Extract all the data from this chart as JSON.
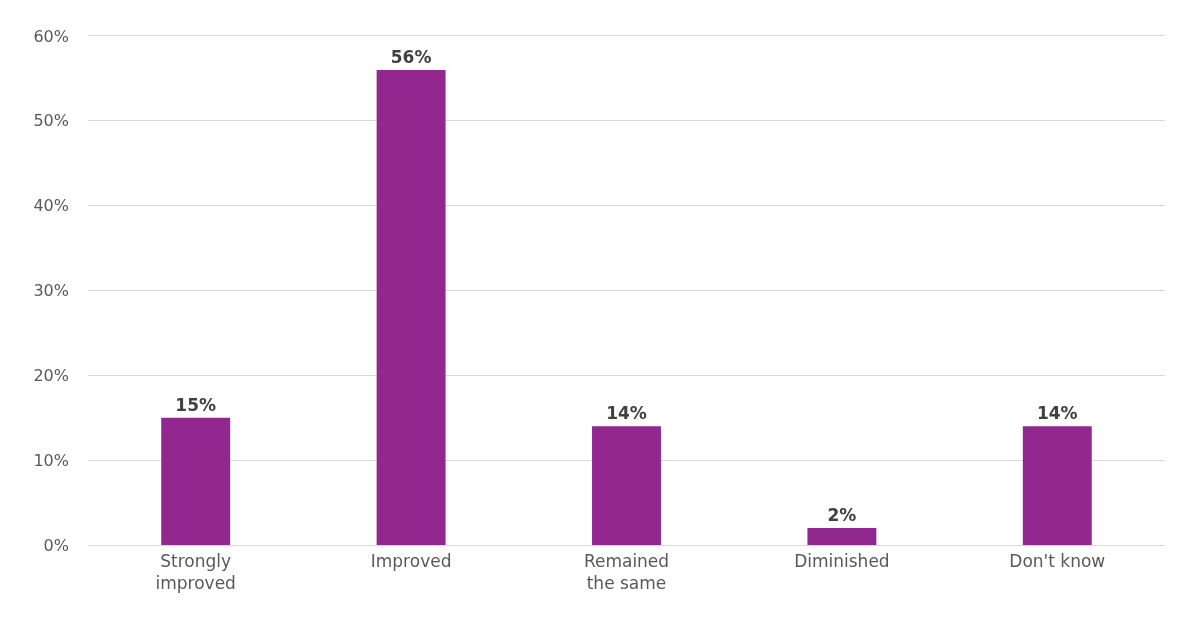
{
  "chart_data": {
    "type": "bar",
    "categories": [
      "Strongly improved",
      "Improved",
      "Remained the same",
      "Diminished",
      "Don't know"
    ],
    "values": [
      15,
      56,
      14,
      2,
      14
    ],
    "value_labels": [
      "15%",
      "56%",
      "14%",
      "2%",
      "14%"
    ],
    "color": "#92278f",
    "ylim": [
      0,
      60
    ],
    "yticks": [
      {
        "value": 0,
        "label": "0%"
      },
      {
        "value": 10,
        "label": "10%"
      },
      {
        "value": 20,
        "label": "20%"
      },
      {
        "value": 30,
        "label": "30%"
      },
      {
        "value": 40,
        "label": "40%"
      },
      {
        "value": 50,
        "label": "50%"
      },
      {
        "value": 60,
        "label": "60%"
      }
    ],
    "grid": "y"
  }
}
